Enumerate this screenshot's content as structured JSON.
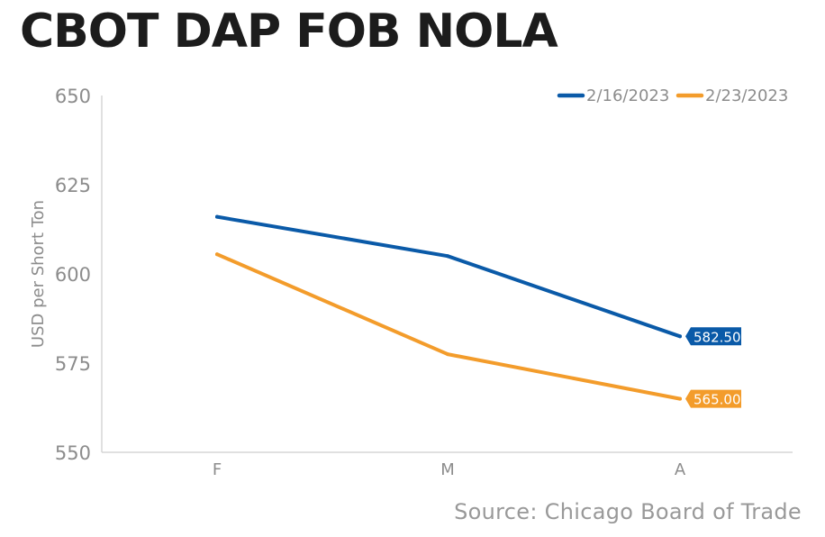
{
  "title": "CBOT DAP FOB NOLA",
  "source": "Source: Chicago Board of Trade",
  "chart_data": {
    "type": "line",
    "categories": [
      "F",
      "M",
      "A"
    ],
    "ylabel": "USD per Short Ton",
    "ylim": [
      550,
      650
    ],
    "yticks": [
      "650",
      "625",
      "600",
      "575",
      "550"
    ],
    "legend_position": "top-right",
    "series": [
      {
        "name": "2/16/2023",
        "color": "#0a5aa8",
        "values": [
          616,
          605,
          582.5
        ],
        "end_label": "582.50"
      },
      {
        "name": "2/23/2023",
        "color": "#f39c2b",
        "values": [
          605.5,
          577.5,
          565
        ],
        "end_label": "565.00"
      }
    ]
  }
}
